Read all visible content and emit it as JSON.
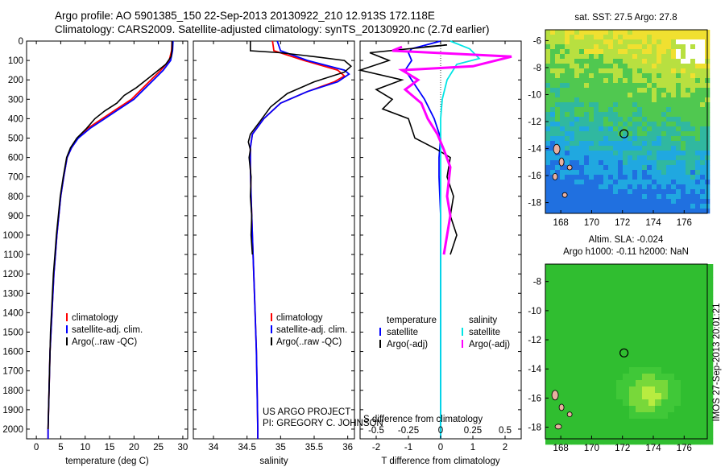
{
  "header": {
    "title1": "Argo profile: AO 5901385_150 22-Sep-2013 20130922_210 12.913S 172.118E",
    "title2": "Climatology: CARS2009. Satellite-adjusted climatology: synTS_20130920.nc (2.7d earlier)"
  },
  "chart_data": [
    {
      "type": "line",
      "name": "temperature-panel",
      "xlabel": "temperature (deg C)",
      "ylabel": "",
      "xlim": [
        -2,
        31
      ],
      "ylim": [
        2050,
        0
      ],
      "xticks": [
        0,
        5,
        10,
        15,
        20,
        25,
        30
      ],
      "yticks": [
        0,
        100,
        200,
        300,
        400,
        500,
        600,
        700,
        800,
        900,
        1000,
        1100,
        1200,
        1300,
        1400,
        1500,
        1600,
        1700,
        1800,
        1900,
        2000
      ],
      "legend": [
        "climatology",
        "satellite-adj. clim.",
        "Argo(..raw -QC)"
      ],
      "series": [
        {
          "name": "climatology",
          "color": "#ff0000",
          "points": [
            [
              27.8,
              0
            ],
            [
              27.7,
              50
            ],
            [
              27.2,
              100
            ],
            [
              25.5,
              150
            ],
            [
              23.5,
              200
            ],
            [
              21.5,
              250
            ],
            [
              19.5,
              300
            ],
            [
              16.5,
              350
            ],
            [
              13.5,
              400
            ],
            [
              10.5,
              450
            ],
            [
              8.5,
              500
            ],
            [
              7.2,
              550
            ],
            [
              6.3,
              600
            ],
            [
              5.6,
              700
            ],
            [
              5.0,
              800
            ],
            [
              4.6,
              900
            ],
            [
              4.2,
              1000
            ],
            [
              3.9,
              1100
            ],
            [
              3.6,
              1200
            ],
            [
              3.4,
              1300
            ],
            [
              3.2,
              1400
            ],
            [
              3.0,
              1500
            ],
            [
              2.8,
              1600
            ],
            [
              2.7,
              1700
            ],
            [
              2.6,
              1800
            ],
            [
              2.5,
              1900
            ],
            [
              2.4,
              2000
            ],
            [
              2.4,
              2050
            ]
          ]
        },
        {
          "name": "satellite-adj. clim.",
          "color": "#0000ff",
          "points": [
            [
              28.0,
              0
            ],
            [
              27.9,
              50
            ],
            [
              27.5,
              100
            ],
            [
              26.0,
              150
            ],
            [
              24.0,
              200
            ],
            [
              22.0,
              250
            ],
            [
              20.0,
              300
            ],
            [
              17.0,
              350
            ],
            [
              14.0,
              400
            ],
            [
              11.0,
              450
            ],
            [
              8.6,
              500
            ],
            [
              7.2,
              550
            ],
            [
              6.3,
              600
            ],
            [
              5.6,
              700
            ],
            [
              5.0,
              800
            ],
            [
              4.6,
              900
            ],
            [
              4.2,
              1000
            ],
            [
              3.9,
              1100
            ],
            [
              3.6,
              1200
            ],
            [
              3.4,
              1300
            ],
            [
              3.2,
              1400
            ],
            [
              3.0,
              1500
            ],
            [
              2.8,
              1600
            ],
            [
              2.7,
              1700
            ],
            [
              2.6,
              1800
            ],
            [
              2.5,
              1900
            ],
            [
              2.4,
              2000
            ],
            [
              2.4,
              2050
            ]
          ]
        },
        {
          "name": "Argo(..raw -QC)",
          "color": "#000000",
          "points": [
            [
              27.8,
              0
            ],
            [
              27.8,
              40
            ],
            [
              27.6,
              80
            ],
            [
              26.5,
              120
            ],
            [
              24.5,
              160
            ],
            [
              22.5,
              200
            ],
            [
              20.5,
              240
            ],
            [
              18.0,
              280
            ],
            [
              16.5,
              320
            ],
            [
              14.0,
              360
            ],
            [
              12.0,
              400
            ],
            [
              10.3,
              450
            ],
            [
              8.3,
              500
            ],
            [
              7.0,
              550
            ],
            [
              6.2,
              600
            ],
            [
              5.5,
              700
            ],
            [
              4.9,
              800
            ],
            [
              4.5,
              900
            ],
            [
              4.1,
              1000
            ],
            [
              3.8,
              1100
            ],
            [
              3.5,
              1200
            ],
            [
              3.3,
              1300
            ],
            [
              3.1,
              1400
            ],
            [
              2.9,
              1500
            ],
            [
              2.8,
              1600
            ],
            [
              2.7,
              1700
            ],
            [
              2.6,
              1800
            ],
            [
              2.5,
              1900
            ],
            [
              2.4,
              2000
            ]
          ]
        }
      ]
    },
    {
      "type": "line",
      "name": "salinity-panel",
      "xlabel": "salinity",
      "ylabel": "",
      "xlim": [
        33.7,
        36.1
      ],
      "ylim": [
        2050,
        0
      ],
      "xticks": [
        34,
        34.5,
        35,
        35.5,
        36
      ],
      "legend": [
        "climatology",
        "satellite-adj. clim.",
        "Argo(..raw -QC)"
      ],
      "annotation": [
        "US ARGO PROJECT",
        "PI: GREGORY C. JOHNSON"
      ],
      "series": [
        {
          "name": "climatology",
          "color": "#ff0000",
          "points": [
            [
              34.88,
              0
            ],
            [
              34.9,
              50
            ],
            [
              35.35,
              100
            ],
            [
              35.85,
              150
            ],
            [
              35.95,
              180
            ],
            [
              35.8,
              210
            ],
            [
              35.4,
              260
            ],
            [
              35.0,
              320
            ],
            [
              34.75,
              400
            ],
            [
              34.58,
              480
            ],
            [
              34.55,
              550
            ],
            [
              34.55,
              650
            ],
            [
              34.56,
              800
            ],
            [
              34.58,
              1000
            ],
            [
              34.6,
              1200
            ],
            [
              34.62,
              1400
            ],
            [
              34.64,
              1600
            ],
            [
              34.65,
              1800
            ],
            [
              34.66,
              2000
            ],
            [
              34.66,
              2050
            ]
          ]
        },
        {
          "name": "satellite-adj. clim.",
          "color": "#0000ff",
          "points": [
            [
              34.95,
              0
            ],
            [
              35.0,
              50
            ],
            [
              35.4,
              100
            ],
            [
              35.95,
              150
            ],
            [
              36.02,
              170
            ],
            [
              35.85,
              210
            ],
            [
              35.4,
              260
            ],
            [
              35.0,
              320
            ],
            [
              34.75,
              400
            ],
            [
              34.58,
              480
            ],
            [
              34.55,
              550
            ],
            [
              34.55,
              650
            ],
            [
              34.56,
              800
            ],
            [
              34.58,
              1000
            ],
            [
              34.6,
              1200
            ],
            [
              34.62,
              1400
            ],
            [
              34.64,
              1600
            ],
            [
              34.65,
              1800
            ],
            [
              34.66,
              2000
            ],
            [
              34.66,
              2050
            ]
          ]
        },
        {
          "name": "Argo(..raw -QC)",
          "color": "#000000",
          "points": [
            [
              34.55,
              0
            ],
            [
              34.55,
              50
            ],
            [
              35.0,
              60
            ],
            [
              35.5,
              80
            ],
            [
              35.95,
              100
            ],
            [
              36.05,
              130
            ],
            [
              35.95,
              160
            ],
            [
              35.5,
              210
            ],
            [
              35.1,
              270
            ],
            [
              34.85,
              340
            ],
            [
              34.68,
              420
            ],
            [
              34.55,
              480
            ],
            [
              34.52,
              520
            ],
            [
              34.55,
              560
            ],
            [
              34.53,
              600
            ],
            [
              34.56,
              700
            ],
            [
              34.55,
              800
            ],
            [
              34.57,
              900
            ],
            [
              34.56,
              1000
            ],
            [
              34.58,
              1100
            ]
          ]
        }
      ]
    },
    {
      "type": "line",
      "name": "difference-panel",
      "xlabel_top": "S difference from climatology",
      "xlabel": "T difference from climatology",
      "xlim": [
        -2.5,
        2.5
      ],
      "ylim": [
        2050,
        0
      ],
      "xticks_T": [
        -2,
        -1,
        0,
        1,
        2
      ],
      "xticks_S": [
        -0.5,
        -0.25,
        0,
        0.25,
        0.5
      ],
      "legend": {
        "temperature_header": "temperature",
        "salinity_header": "salinity",
        "temperature": [
          "satellite",
          "Argo(-adj)"
        ],
        "salinity": [
          "satellite",
          "Argo(-adj)"
        ]
      },
      "series": [
        {
          "name": "T satellite",
          "color": "#0000ff",
          "points": [
            [
              0.0,
              0
            ],
            [
              -0.9,
              40
            ],
            [
              -1.0,
              60
            ],
            [
              -0.9,
              100
            ],
            [
              -1.1,
              150
            ],
            [
              -0.9,
              200
            ],
            [
              -0.5,
              300
            ],
            [
              -0.2,
              400
            ],
            [
              0.0,
              500
            ],
            [
              -0.05,
              600
            ],
            [
              -0.05,
              700
            ],
            [
              0,
              900
            ],
            [
              0,
              2050
            ]
          ]
        },
        {
          "name": "T Argo(-adj)",
          "color": "#000000",
          "points": [
            [
              -0.5,
              30
            ],
            [
              0.2,
              20
            ],
            [
              -2.2,
              60
            ],
            [
              -1.6,
              100
            ],
            [
              -2.5,
              150
            ],
            [
              -1.2,
              200
            ],
            [
              -2.0,
              250
            ],
            [
              -1.5,
              300
            ],
            [
              -1.8,
              350
            ],
            [
              -1.0,
              400
            ],
            [
              -0.9,
              450
            ],
            [
              -0.8,
              500
            ],
            [
              -0.1,
              560
            ],
            [
              0.3,
              600
            ],
            [
              0.2,
              700
            ],
            [
              0.4,
              800
            ],
            [
              0.3,
              900
            ],
            [
              0.5,
              1000
            ],
            [
              0.3,
              1100
            ]
          ]
        },
        {
          "name": "S satellite",
          "color": "#00e5e5",
          "points": [
            [
              0.3,
              0
            ],
            [
              0.9,
              40
            ],
            [
              1.2,
              90
            ],
            [
              0.5,
              120
            ],
            [
              0.2,
              200
            ],
            [
              0.05,
              300
            ],
            [
              0,
              400
            ],
            [
              0,
              500
            ],
            [
              0,
              700
            ],
            [
              0,
              1000
            ],
            [
              0,
              1500
            ],
            [
              0,
              2050
            ]
          ]
        },
        {
          "name": "S Argo(-adj)",
          "color": "#ff00ff",
          "points": [
            [
              -1.2,
              30
            ],
            [
              -1.5,
              50
            ],
            [
              2.2,
              80
            ],
            [
              1.0,
              130
            ],
            [
              -1.2,
              150
            ],
            [
              -0.7,
              200
            ],
            [
              -1.1,
              250
            ],
            [
              -0.6,
              320
            ],
            [
              -0.4,
              400
            ],
            [
              -0.1,
              480
            ],
            [
              0.1,
              560
            ],
            [
              0.3,
              650
            ],
            [
              0.2,
              800
            ],
            [
              0.3,
              900
            ],
            [
              0.2,
              1000
            ],
            [
              0.1,
              1100
            ]
          ]
        }
      ]
    },
    {
      "type": "heatmap",
      "name": "sst-map",
      "title": "sat. SST: 27.5 Argo: 27.8",
      "xticks": [
        168,
        170,
        172,
        174,
        176
      ],
      "yticks": [
        -6,
        -8,
        -10,
        -12,
        -14,
        -16,
        -18
      ],
      "xlim": [
        167,
        177.5
      ],
      "ylim": [
        -18.8,
        -5.2
      ],
      "marker": [
        172.1,
        -12.9
      ]
    },
    {
      "type": "heatmap",
      "name": "sla-map",
      "title": "Altim. SLA: -0.024",
      "subtitle": "Argo h1000: -0.11 h2000: NaN",
      "xticks": [
        168,
        170,
        172,
        174,
        176
      ],
      "yticks": [
        -8,
        -10,
        -12,
        -14,
        -16,
        -18
      ],
      "xlim": [
        167,
        177.5
      ],
      "ylim": [
        -18.8,
        -6.8
      ],
      "marker": [
        172.1,
        -12.9
      ]
    }
  ],
  "side_label": "IMOS 27-Sep-2013 20:01:21",
  "colors": {
    "climatology": "#ff0000",
    "satellite": "#0000ff",
    "argo": "#000000",
    "sal_satellite": "#00e5e5",
    "sal_argo": "#ff00ff"
  }
}
